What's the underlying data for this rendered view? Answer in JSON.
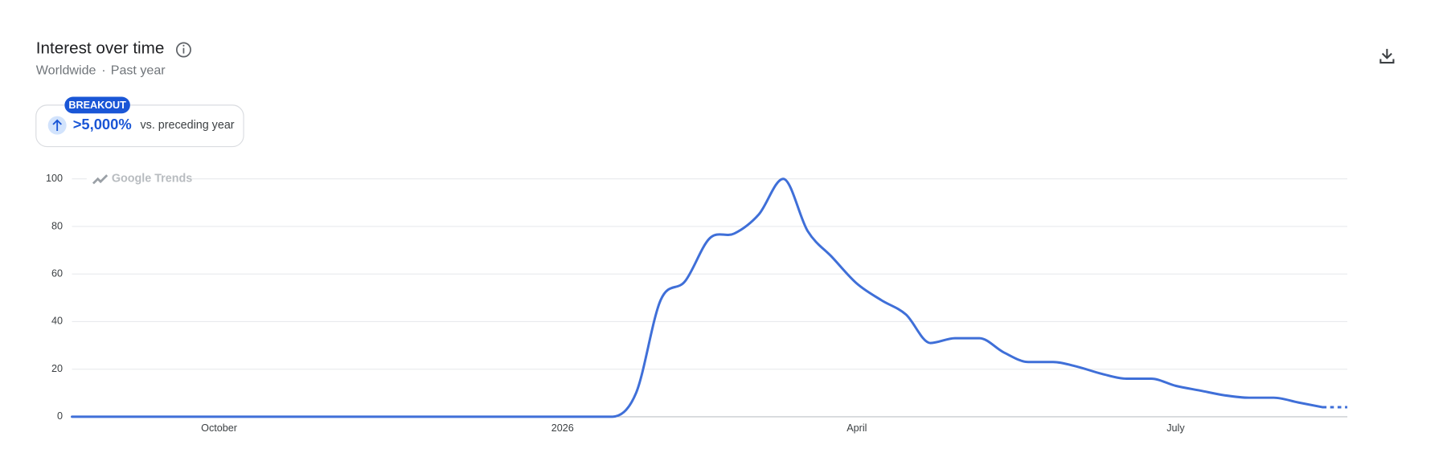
{
  "chart_data": {
    "type": "line",
    "title": "Interest over time",
    "region": "Worldwide",
    "period": "Past year",
    "badge": {
      "label": "BREAKOUT",
      "change": ">5,000%",
      "comparison": "vs. preceding year"
    },
    "watermark": "Google Trends",
    "categories": [
      null,
      null,
      null,
      null,
      null,
      null,
      "October",
      null,
      null,
      null,
      null,
      null,
      null,
      null,
      null,
      null,
      null,
      null,
      null,
      null,
      "2026",
      null,
      null,
      null,
      null,
      null,
      null,
      null,
      null,
      null,
      null,
      null,
      "April",
      null,
      null,
      null,
      null,
      null,
      null,
      null,
      null,
      null,
      null,
      null,
      null,
      "July",
      null,
      null,
      null,
      null,
      null,
      null,
      null
    ],
    "values": [
      0,
      0,
      0,
      0,
      0,
      0,
      0,
      0,
      0,
      0,
      0,
      0,
      0,
      0,
      0,
      0,
      0,
      0,
      0,
      0,
      0,
      0,
      0,
      10,
      49,
      57,
      75,
      77,
      85,
      100,
      78,
      67,
      56,
      49,
      43,
      31,
      33,
      33,
      27,
      23,
      23,
      21,
      18,
      16,
      16,
      13,
      11,
      9,
      8,
      8,
      6,
      4,
      4
    ],
    "color": "#3f6fd8",
    "partial_last": true,
    "ylim": [
      0,
      100
    ],
    "yticks": [
      0,
      20,
      40,
      60,
      80,
      100
    ],
    "grid": true
  }
}
